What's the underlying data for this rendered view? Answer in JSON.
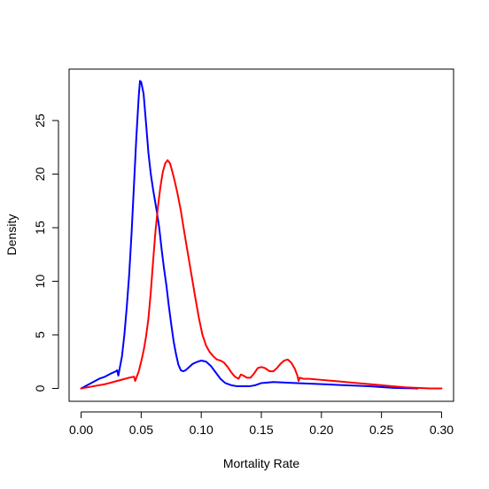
{
  "chart_data": {
    "type": "line",
    "title": "",
    "xlabel": "Mortality Rate",
    "ylabel": "Density",
    "xlim": [
      -0.01,
      0.31
    ],
    "ylim": [
      -1.2,
      29.8
    ],
    "xticks": [
      0.0,
      0.05,
      0.1,
      0.15,
      0.2,
      0.25,
      0.3
    ],
    "xtick_labels": [
      "0.00",
      "0.05",
      "0.10",
      "0.15",
      "0.20",
      "0.25",
      "0.30"
    ],
    "yticks": [
      0,
      5,
      10,
      15,
      20,
      25
    ],
    "ytick_labels": [
      "0",
      "5",
      "10",
      "15",
      "20",
      "25"
    ],
    "grid": false,
    "legend": "none",
    "series": [
      {
        "color": "#0000ff",
        "points": [
          [
            0.0,
            0.0
          ],
          [
            0.005,
            0.3
          ],
          [
            0.01,
            0.6
          ],
          [
            0.015,
            0.9
          ],
          [
            0.02,
            1.1
          ],
          [
            0.025,
            1.4
          ],
          [
            0.029,
            1.6
          ],
          [
            0.03,
            1.7
          ],
          [
            0.031,
            1.2
          ],
          [
            0.032,
            1.8
          ],
          [
            0.034,
            3.0
          ],
          [
            0.036,
            5.0
          ],
          [
            0.038,
            7.6
          ],
          [
            0.04,
            10.6
          ],
          [
            0.042,
            14.5
          ],
          [
            0.044,
            19.0
          ],
          [
            0.046,
            23.5
          ],
          [
            0.048,
            27.3
          ],
          [
            0.049,
            28.7
          ],
          [
            0.05,
            28.6
          ],
          [
            0.052,
            27.5
          ],
          [
            0.054,
            24.8
          ],
          [
            0.056,
            22.0
          ],
          [
            0.058,
            20.0
          ],
          [
            0.06,
            18.5
          ],
          [
            0.063,
            16.5
          ],
          [
            0.065,
            15.0
          ],
          [
            0.067,
            13.0
          ],
          [
            0.069,
            11.2
          ],
          [
            0.071,
            9.6
          ],
          [
            0.073,
            7.7
          ],
          [
            0.075,
            6.0
          ],
          [
            0.077,
            4.4
          ],
          [
            0.079,
            3.2
          ],
          [
            0.081,
            2.2
          ],
          [
            0.083,
            1.7
          ],
          [
            0.085,
            1.6
          ],
          [
            0.087,
            1.7
          ],
          [
            0.09,
            2.0
          ],
          [
            0.093,
            2.3
          ],
          [
            0.097,
            2.5
          ],
          [
            0.1,
            2.6
          ],
          [
            0.104,
            2.5
          ],
          [
            0.108,
            2.1
          ],
          [
            0.112,
            1.5
          ],
          [
            0.116,
            0.9
          ],
          [
            0.12,
            0.5
          ],
          [
            0.125,
            0.3
          ],
          [
            0.13,
            0.2
          ],
          [
            0.135,
            0.2
          ],
          [
            0.14,
            0.2
          ],
          [
            0.145,
            0.3
          ],
          [
            0.15,
            0.5
          ],
          [
            0.155,
            0.55
          ],
          [
            0.16,
            0.6
          ],
          [
            0.17,
            0.55
          ],
          [
            0.18,
            0.5
          ],
          [
            0.2,
            0.4
          ],
          [
            0.22,
            0.3
          ],
          [
            0.24,
            0.2
          ],
          [
            0.26,
            0.05
          ],
          [
            0.28,
            0.0
          ]
        ]
      },
      {
        "color": "#ff0000",
        "points": [
          [
            0.0,
            0.0
          ],
          [
            0.01,
            0.2
          ],
          [
            0.02,
            0.4
          ],
          [
            0.03,
            0.7
          ],
          [
            0.04,
            1.0
          ],
          [
            0.044,
            1.1
          ],
          [
            0.045,
            0.7
          ],
          [
            0.046,
            1.0
          ],
          [
            0.048,
            1.6
          ],
          [
            0.05,
            2.5
          ],
          [
            0.052,
            3.5
          ],
          [
            0.054,
            4.8
          ],
          [
            0.056,
            6.5
          ],
          [
            0.058,
            9.0
          ],
          [
            0.06,
            12.0
          ],
          [
            0.062,
            14.8
          ],
          [
            0.064,
            17.0
          ],
          [
            0.066,
            18.8
          ],
          [
            0.068,
            20.2
          ],
          [
            0.07,
            21.0
          ],
          [
            0.072,
            21.3
          ],
          [
            0.074,
            21.0
          ],
          [
            0.076,
            20.2
          ],
          [
            0.078,
            19.3
          ],
          [
            0.08,
            18.3
          ],
          [
            0.083,
            16.6
          ],
          [
            0.086,
            14.5
          ],
          [
            0.089,
            12.5
          ],
          [
            0.092,
            10.5
          ],
          [
            0.095,
            8.5
          ],
          [
            0.098,
            6.6
          ],
          [
            0.101,
            5.0
          ],
          [
            0.104,
            4.0
          ],
          [
            0.107,
            3.4
          ],
          [
            0.11,
            3.0
          ],
          [
            0.113,
            2.7
          ],
          [
            0.116,
            2.6
          ],
          [
            0.119,
            2.4
          ],
          [
            0.122,
            2.0
          ],
          [
            0.125,
            1.5
          ],
          [
            0.128,
            1.1
          ],
          [
            0.131,
            0.9
          ],
          [
            0.133,
            1.3
          ],
          [
            0.135,
            1.2
          ],
          [
            0.138,
            1.0
          ],
          [
            0.141,
            1.0
          ],
          [
            0.144,
            1.4
          ],
          [
            0.147,
            1.9
          ],
          [
            0.15,
            2.0
          ],
          [
            0.153,
            1.9
          ],
          [
            0.157,
            1.6
          ],
          [
            0.16,
            1.6
          ],
          [
            0.163,
            1.9
          ],
          [
            0.166,
            2.3
          ],
          [
            0.169,
            2.6
          ],
          [
            0.172,
            2.7
          ],
          [
            0.175,
            2.4
          ],
          [
            0.178,
            1.8
          ],
          [
            0.18,
            1.2
          ],
          [
            0.181,
            0.7
          ],
          [
            0.182,
            1.0
          ],
          [
            0.185,
            0.9
          ],
          [
            0.19,
            0.9
          ],
          [
            0.2,
            0.8
          ],
          [
            0.21,
            0.7
          ],
          [
            0.22,
            0.6
          ],
          [
            0.23,
            0.5
          ],
          [
            0.24,
            0.4
          ],
          [
            0.25,
            0.3
          ],
          [
            0.26,
            0.2
          ],
          [
            0.27,
            0.1
          ],
          [
            0.28,
            0.05
          ],
          [
            0.29,
            0.0
          ],
          [
            0.3,
            0.0
          ]
        ]
      }
    ]
  }
}
